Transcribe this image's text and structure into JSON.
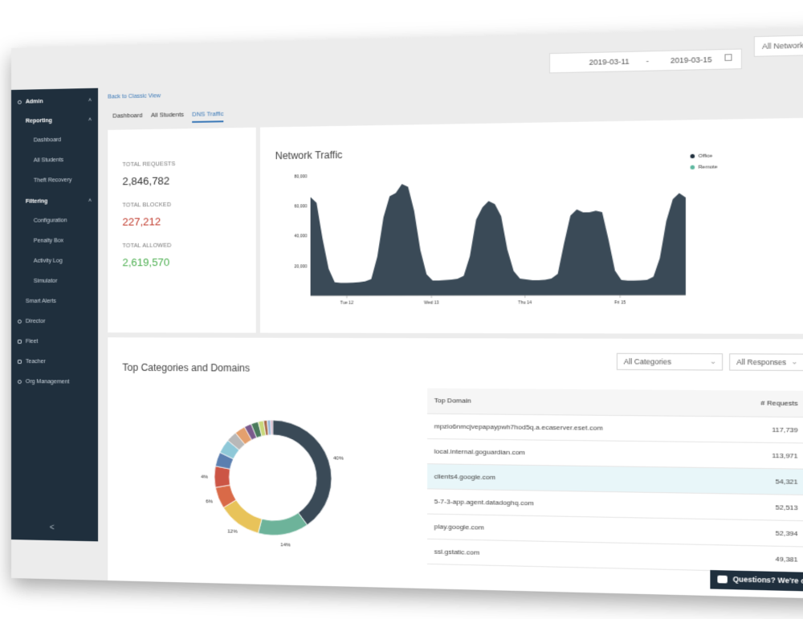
{
  "header": {
    "date_from": "2019-03-11",
    "date_separator": "-",
    "date_to": "2019-03-15",
    "network_filter": "All Networks"
  },
  "sidebar": {
    "admin": "Admin",
    "reporting": "Reporting",
    "reporting_items": [
      "Dashboard",
      "All Students",
      "Theft Recovery"
    ],
    "filtering": "Filtering",
    "filtering_items": [
      "Configuration",
      "Penalty Box",
      "Activity Log",
      "Simulator"
    ],
    "smart_alerts": "Smart Alerts",
    "director": "Director",
    "fleet": "Fleet",
    "teacher": "Teacher",
    "org_management": "Org Management",
    "collapse": "<"
  },
  "nav": {
    "back_link": "Back to Classic View",
    "tabs": [
      "Dashboard",
      "All Students",
      "DNS Traffic"
    ],
    "active_tab": 2
  },
  "stats": {
    "total_requests_label": "TOTAL REQUESTS",
    "total_requests": "2,846,782",
    "total_blocked_label": "TOTAL BLOCKED",
    "total_blocked": "227,212",
    "total_allowed_label": "TOTAL ALLOWED",
    "total_allowed": "2,619,570",
    "blocked_color": "#c0392b",
    "allowed_color": "#4caf50"
  },
  "traffic_chart": {
    "title": "Network Traffic",
    "legend": [
      {
        "name": "Office",
        "color": "#1f2f3d"
      },
      {
        "name": "Remote",
        "color": "#5fb8a0"
      }
    ],
    "y_ticks": [
      "80,000",
      "60,000",
      "40,000",
      "20,000"
    ],
    "x_ticks": [
      "Tue 12",
      "Wed 13",
      "Thu 14",
      "Fri 15"
    ]
  },
  "categories": {
    "title": "Top Categories and Domains",
    "category_filter": "All Categories",
    "response_filter": "All Responses",
    "pie_labels": [
      "40%",
      "14%",
      "12%",
      "6%",
      "4%"
    ]
  },
  "domains_table": {
    "col_domain": "Top Domain",
    "col_requests": "# Requests",
    "rows": [
      {
        "domain": "mpzio6nmcjvepapaypwh7hod5q.a.ecaserver.eset.com",
        "requests": "117,739"
      },
      {
        "domain": "local.internal.goguardian.com",
        "requests": "113,971"
      },
      {
        "domain": "clients4.google.com",
        "requests": "54,321"
      },
      {
        "domain": "5-7-3-app.agent.datadoghq.com",
        "requests": "52,513"
      },
      {
        "domain": "play.google.com",
        "requests": "52,394"
      },
      {
        "domain": "ssl.gstatic.com",
        "requests": "49,381"
      }
    ],
    "highlight_row": 2
  },
  "chat": {
    "label": "Questions? We're online."
  },
  "chart_data": [
    {
      "type": "area",
      "title": "Network Traffic",
      "series": [
        {
          "name": "Office",
          "color": "#3a4a57",
          "x": [
            0,
            2,
            4,
            6,
            8,
            10,
            12,
            14,
            16,
            18,
            20,
            22,
            24,
            26,
            28,
            30,
            32,
            34,
            36,
            38,
            40,
            42,
            44,
            46,
            48,
            50,
            52,
            54,
            56,
            58,
            60,
            62,
            64,
            66,
            68,
            70,
            72,
            74,
            76,
            78,
            80,
            82,
            84,
            86,
            88,
            90,
            92,
            94,
            96,
            98,
            100,
            102,
            104,
            106,
            108,
            110,
            112,
            114,
            116,
            118,
            120
          ],
          "values": [
            66000,
            62000,
            38000,
            18000,
            9000,
            8500,
            8500,
            8700,
            9000,
            9500,
            11000,
            26000,
            52000,
            66000,
            68000,
            74000,
            72000,
            56000,
            30000,
            14000,
            10000,
            10000,
            10200,
            10500,
            11000,
            13000,
            26000,
            50000,
            58000,
            62000,
            60000,
            52000,
            30000,
            16000,
            11000,
            10500,
            10000,
            10000,
            10200,
            11000,
            14000,
            34000,
            52000,
            56000,
            54000,
            54000,
            55000,
            54000,
            36000,
            16000,
            10000,
            9500,
            9500,
            9700,
            10000,
            12000,
            24000,
            48000,
            62000,
            66000,
            63000
          ]
        }
      ],
      "ylim": [
        0,
        80000
      ],
      "x_ticks": [
        "Tue 12",
        "Wed 13",
        "Thu 14",
        "Fri 15"
      ],
      "legend": [
        "Office",
        "Remote"
      ],
      "legend_position": "top-right"
    },
    {
      "type": "pie",
      "donut": true,
      "labels_shown": [
        "40%",
        "14%",
        "12%",
        "6%",
        "4%"
      ],
      "values": [
        40,
        14,
        12,
        6,
        6,
        4,
        4,
        3,
        3,
        2,
        2,
        1.5,
        1,
        1,
        0.5
      ],
      "colors": [
        "#3a4a57",
        "#6db39a",
        "#e8c35a",
        "#d96a48",
        "#cc5545",
        "#5b7fb0",
        "#8ec8d8",
        "#b8b8b8",
        "#e4a06e",
        "#7a5a8c",
        "#4a7a5c",
        "#c8d87a",
        "#a86a4a",
        "#9ab8d8",
        "#d0a0b8"
      ]
    }
  ]
}
